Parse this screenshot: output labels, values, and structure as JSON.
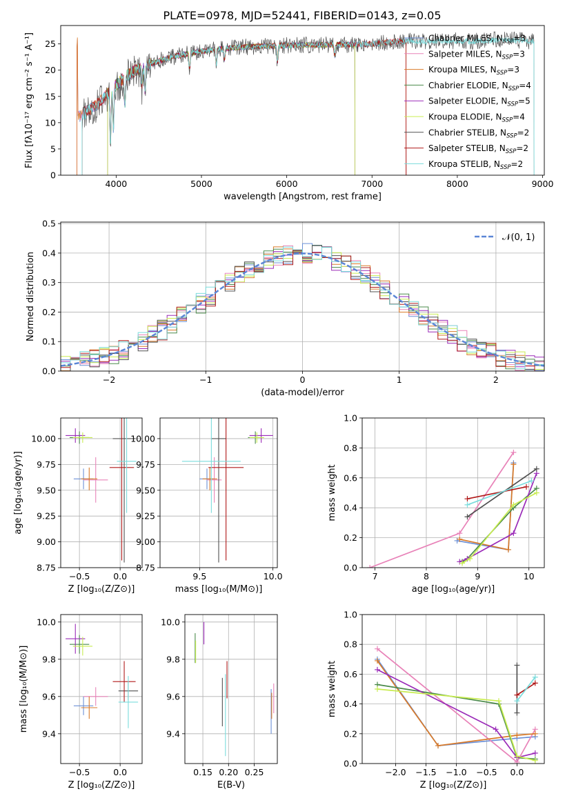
{
  "figure_title": "PLATE=0978, MJD=52441, FIBERID=0143, z=0.05",
  "colors": {
    "Chabrier MILES": "#6a8fd6",
    "Salpeter MILES": "#e882b8",
    "Kroupa MILES": "#d97a28",
    "Chabrier ELODIE": "#4a8a4a",
    "Salpeter ELODIE": "#9a2ab8",
    "Kroupa ELODIE": "#c8ec50",
    "Chabrier STELIB": "#505050",
    "Salpeter STELIB": "#b01818",
    "Kroupa STELIB": "#7adcdc",
    "gaussian": "#5b86d6"
  },
  "chart_data": [
    {
      "id": "spectrum",
      "type": "line",
      "title": "PLATE=0978, MJD=52441, FIBERID=0143, z=0.05",
      "xlabel": "wavelength [Angstrom, rest frame]",
      "ylabel": "Flux [fλ10⁻¹⁷ erg cm⁻² s⁻¹ A⁻¹]",
      "xlim": [
        3350,
        9020
      ],
      "ylim": [
        0,
        28.5
      ],
      "xticks": [
        4000,
        5000,
        6000,
        7000,
        8000,
        9000
      ],
      "yticks": [
        0,
        5,
        10,
        15,
        20,
        25
      ],
      "legend_position": "right",
      "legend": [
        {
          "label": "Chabrier MILES, N",
          "sub": "SSP",
          "tail": "=3",
          "model": "Chabrier MILES"
        },
        {
          "label": "Salpeter MILES, N",
          "sub": "SSP",
          "tail": "=3",
          "model": "Salpeter MILES"
        },
        {
          "label": "Kroupa MILES, N",
          "sub": "SSP",
          "tail": "=3",
          "model": "Kroupa MILES"
        },
        {
          "label": "Chabrier ELODIE, N",
          "sub": "SSP",
          "tail": "=4",
          "model": "Chabrier ELODIE"
        },
        {
          "label": "Salpeter ELODIE, N",
          "sub": "SSP",
          "tail": "=5",
          "model": "Salpeter ELODIE"
        },
        {
          "label": "Kroupa ELODIE, N",
          "sub": "SSP",
          "tail": "=4",
          "model": "Kroupa ELODIE"
        },
        {
          "label": "Chabrier STELIB, N",
          "sub": "SSP",
          "tail": "=2",
          "model": "Chabrier STELIB"
        },
        {
          "label": "Salpeter STELIB, N",
          "sub": "SSP",
          "tail": "=2",
          "model": "Salpeter STELIB"
        },
        {
          "label": "Kroupa STELIB, N",
          "sub": "SSP",
          "tail": "=2",
          "model": "Kroupa STELIB"
        }
      ],
      "continuum": {
        "x": [
          3550,
          3700,
          3800,
          3900,
          4000,
          4100,
          4200,
          4400,
          4600,
          4800,
          5000,
          5200,
          5400,
          5600,
          5800,
          6000,
          6200,
          6400,
          6600,
          6800,
          7000,
          7200,
          7400,
          7600,
          7800,
          8000,
          8200,
          8400,
          8600,
          8800,
          9000
        ],
        "y": [
          11,
          12.5,
          13.8,
          15.5,
          17.2,
          18.6,
          19.8,
          21.2,
          22.3,
          23.0,
          23.6,
          24.0,
          24.3,
          24.5,
          24.6,
          24.7,
          24.8,
          24.8,
          24.8,
          24.9,
          25.0,
          25.3,
          25.6,
          25.4,
          25.5,
          25.6,
          25.5,
          25.7,
          25.8,
          25.6,
          25.5
        ]
      },
      "absorption_lines": [
        {
          "x": 3933,
          "depth": 10
        },
        {
          "x": 3968,
          "depth": 8
        },
        {
          "x": 4102,
          "depth": 5
        },
        {
          "x": 4304,
          "depth": 4
        },
        {
          "x": 4340,
          "depth": 5
        },
        {
          "x": 4861,
          "depth": 3
        },
        {
          "x": 5175,
          "depth": 3
        },
        {
          "x": 5270,
          "depth": 2
        },
        {
          "x": 5890,
          "depth": 3
        },
        {
          "x": 6563,
          "depth": 2
        }
      ]
    },
    {
      "id": "residuals",
      "type": "bar",
      "xlabel": "(data-model)/error",
      "ylabel": "Normed distribution",
      "xlim": [
        -2.5,
        2.5
      ],
      "ylim": [
        0,
        0.505
      ],
      "xticks": [
        -2,
        -1,
        0,
        1,
        2
      ],
      "xticklabels": [
        "−2",
        "−1",
        "0",
        "1",
        "2"
      ],
      "yticks": [
        0,
        0.1,
        0.2,
        0.3,
        0.4,
        0.5
      ],
      "yticklabels": [
        "0.0",
        "0.1",
        "0.2",
        "0.3",
        "0.4",
        "0.5"
      ],
      "bin_width": 0.1,
      "series_note": "nine step histograms scattered around N(0,1)",
      "legend": [
        {
          "label": "𝒩(0, 1)"
        }
      ],
      "legend_position": "top-right"
    },
    {
      "id": "age_vs_Z",
      "type": "scatter",
      "xlabel": "Z [log₁₀(Z/Z⊙)]",
      "ylabel": "age  [log₁₀(age/yr)]",
      "xlim": [
        -0.73,
        0.27
      ],
      "ylim": [
        8.75,
        10.2
      ],
      "xticks": [
        -0.5,
        0.0
      ],
      "xticklabels": [
        "−0.5",
        "0.0"
      ],
      "yticks": [
        8.75,
        9.0,
        9.25,
        9.5,
        9.75,
        10.0
      ],
      "yticklabels": [
        "8.75",
        "9.00",
        "9.25",
        "9.50",
        "9.75",
        "10.00"
      ],
      "points": [
        {
          "model": "Chabrier MILES",
          "x": -0.45,
          "y": 9.61,
          "xerr": 0.12,
          "yerr": 0.1
        },
        {
          "model": "Salpeter MILES",
          "x": -0.3,
          "y": 9.6,
          "xerr": 0.15,
          "yerr": 0.22
        },
        {
          "model": "Kroupa MILES",
          "x": -0.38,
          "y": 9.61,
          "xerr": 0.1,
          "yerr": 0.11
        },
        {
          "model": "Chabrier ELODIE",
          "x": -0.5,
          "y": 10.01,
          "xerr": 0.12,
          "yerr": 0.06
        },
        {
          "model": "Salpeter ELODIE",
          "x": -0.55,
          "y": 10.03,
          "xerr": 0.12,
          "yerr": 0.07
        },
        {
          "model": "Kroupa ELODIE",
          "x": -0.46,
          "y": 10.01,
          "xerr": 0.12,
          "yerr": 0.05
        },
        {
          "model": "Chabrier STELIB",
          "x": 0.05,
          "y": 10.0,
          "xerr": 0.14,
          "yerr": 1.2
        },
        {
          "model": "Salpeter STELIB",
          "x": 0.02,
          "y": 9.72,
          "xerr": 0.15,
          "yerr": 0.9
        },
        {
          "model": "Kroupa STELIB",
          "x": 0.08,
          "y": 9.78,
          "xerr": 0.12,
          "yerr": 0.5
        }
      ]
    },
    {
      "id": "age_vs_mass",
      "type": "scatter",
      "xlabel": "mass [log₁₀(M/M⊙)]",
      "ylabel": "",
      "xlim": [
        9.23,
        10.03
      ],
      "ylim": [
        8.75,
        10.2
      ],
      "xticks": [
        9.5,
        10.0
      ],
      "xticklabels": [
        "9.5",
        "10.0"
      ],
      "yticks": [
        8.75,
        9.0,
        9.25,
        9.5,
        9.75,
        10.0
      ],
      "yticklabels": [
        "8.75",
        "9.00",
        "9.25",
        "9.50",
        "9.75",
        "10.00"
      ],
      "points": [
        {
          "model": "Chabrier MILES",
          "x": 9.55,
          "y": 9.61,
          "xerr": 0.05,
          "yerr": 0.1
        },
        {
          "model": "Salpeter MILES",
          "x": 9.6,
          "y": 9.6,
          "xerr": 0.05,
          "yerr": 0.22
        },
        {
          "model": "Kroupa MILES",
          "x": 9.57,
          "y": 9.61,
          "xerr": 0.05,
          "yerr": 0.11
        },
        {
          "model": "Chabrier ELODIE",
          "x": 9.88,
          "y": 10.01,
          "xerr": 0.05,
          "yerr": 0.06
        },
        {
          "model": "Salpeter ELODIE",
          "x": 9.92,
          "y": 10.03,
          "xerr": 0.08,
          "yerr": 0.07
        },
        {
          "model": "Kroupa ELODIE",
          "x": 9.89,
          "y": 10.01,
          "xerr": 0.05,
          "yerr": 0.05
        },
        {
          "model": "Chabrier STELIB",
          "x": 9.63,
          "y": 10.0,
          "xerr": 0.05,
          "yerr": 1.2
        },
        {
          "model": "Salpeter STELIB",
          "x": 9.68,
          "y": 9.72,
          "xerr": 0.12,
          "yerr": 0.9
        },
        {
          "model": "Kroupa STELIB",
          "x": 9.58,
          "y": 9.78,
          "xerr": 0.2,
          "yerr": 0.5
        }
      ]
    },
    {
      "id": "weight_vs_age",
      "type": "line",
      "xlabel": "age  [log₁₀(age/yr)]",
      "ylabel": "mass weight",
      "xlim": [
        6.75,
        10.3
      ],
      "ylim": [
        0,
        1.0
      ],
      "xticks": [
        7,
        8,
        9,
        10
      ],
      "yticks": [
        0,
        0.2,
        0.4,
        0.6,
        0.8,
        1.0
      ],
      "yticklabels": [
        "0.0",
        "0.2",
        "0.4",
        "0.6",
        "0.8",
        "1.0"
      ],
      "series": [
        {
          "model": "Chabrier MILES",
          "x": [
            8.6,
            9.6,
            9.7
          ],
          "y": [
            0.18,
            0.12,
            0.7
          ]
        },
        {
          "model": "Salpeter MILES",
          "x": [
            6.9,
            8.65,
            9.7
          ],
          "y": [
            0.0,
            0.23,
            0.77
          ]
        },
        {
          "model": "Kroupa MILES",
          "x": [
            8.65,
            9.6,
            9.7
          ],
          "y": [
            0.19,
            0.12,
            0.69
          ]
        },
        {
          "model": "Chabrier ELODIE",
          "x": [
            8.7,
            8.8,
            9.7,
            10.15
          ],
          "y": [
            0.04,
            0.06,
            0.4,
            0.53
          ]
        },
        {
          "model": "Salpeter ELODIE",
          "x": [
            8.65,
            8.8,
            9.7,
            10.15
          ],
          "y": [
            0.04,
            0.06,
            0.23,
            0.63
          ]
        },
        {
          "model": "Kroupa ELODIE",
          "x": [
            8.7,
            8.85,
            9.7,
            10.15
          ],
          "y": [
            0.03,
            0.06,
            0.42,
            0.5
          ]
        },
        {
          "model": "Chabrier STELIB",
          "x": [
            8.8,
            10.15
          ],
          "y": [
            0.34,
            0.66
          ]
        },
        {
          "model": "Salpeter STELIB",
          "x": [
            8.8,
            9.95
          ],
          "y": [
            0.46,
            0.54
          ]
        },
        {
          "model": "Kroupa STELIB",
          "x": [
            8.8,
            10.05
          ],
          "y": [
            0.42,
            0.58
          ]
        }
      ]
    },
    {
      "id": "mass_vs_Z",
      "type": "scatter",
      "xlabel": "Z [log₁₀(Z/Z⊙)]",
      "ylabel": "mass [log₁₀(M/M⊙)]",
      "xlim": [
        -0.73,
        0.27
      ],
      "ylim": [
        9.24,
        10.04
      ],
      "xticks": [
        -0.5,
        0.0
      ],
      "xticklabels": [
        "−0.5",
        "0.0"
      ],
      "yticks": [
        9.4,
        9.6,
        9.8,
        10.0
      ],
      "yticklabels": [
        "9.4",
        "9.6",
        "9.8",
        "10.0"
      ],
      "points": [
        {
          "model": "Chabrier MILES",
          "x": -0.45,
          "y": 9.55,
          "xerr": 0.12,
          "yerr": 0.05
        },
        {
          "model": "Salpeter MILES",
          "x": -0.3,
          "y": 9.6,
          "xerr": 0.15,
          "yerr": 0.05
        },
        {
          "model": "Kroupa MILES",
          "x": -0.38,
          "y": 9.54,
          "xerr": 0.1,
          "yerr": 0.06
        },
        {
          "model": "Chabrier ELODIE",
          "x": -0.5,
          "y": 9.88,
          "xerr": 0.12,
          "yerr": 0.05
        },
        {
          "model": "Salpeter ELODIE",
          "x": -0.55,
          "y": 9.91,
          "xerr": 0.12,
          "yerr": 0.08
        },
        {
          "model": "Kroupa ELODIE",
          "x": -0.46,
          "y": 9.87,
          "xerr": 0.12,
          "yerr": 0.05
        },
        {
          "model": "Chabrier STELIB",
          "x": 0.1,
          "y": 9.63,
          "xerr": 0.12,
          "yerr": 0.05
        },
        {
          "model": "Salpeter STELIB",
          "x": 0.05,
          "y": 9.68,
          "xerr": 0.14,
          "yerr": 0.11
        },
        {
          "model": "Kroupa STELIB",
          "x": 0.1,
          "y": 9.57,
          "xerr": 0.12,
          "yerr": 0.14
        }
      ]
    },
    {
      "id": "mass_vs_EBV",
      "type": "scatter",
      "xlabel": "E(B-V)",
      "ylabel": "",
      "xlim": [
        0.115,
        0.295
      ],
      "ylim": [
        9.24,
        10.04
      ],
      "xticks": [
        0.15,
        0.2,
        0.25
      ],
      "xticklabels": [
        "0.15",
        "0.20",
        "0.25"
      ],
      "yticks": [
        9.4,
        9.6,
        9.8,
        10.0
      ],
      "yticklabels": [
        "9.4",
        "9.6",
        "9.8",
        "10.0"
      ],
      "points": [
        {
          "model": "Chabrier MILES",
          "x": 0.283,
          "y": 9.52,
          "xerr": 0,
          "yerr": 0.12
        },
        {
          "model": "Salpeter MILES",
          "x": 0.288,
          "y": 9.59,
          "xerr": 0,
          "yerr": 0.08
        },
        {
          "model": "Kroupa MILES",
          "x": 0.284,
          "y": 9.55,
          "xerr": 0,
          "yerr": 0.07
        },
        {
          "model": "Chabrier ELODIE",
          "x": 0.135,
          "y": 9.86,
          "xerr": 0,
          "yerr": 0.08
        },
        {
          "model": "Salpeter ELODIE",
          "x": 0.152,
          "y": 9.94,
          "xerr": 0,
          "yerr": 0.06
        },
        {
          "model": "Kroupa ELODIE",
          "x": 0.136,
          "y": 9.84,
          "xerr": 0,
          "yerr": 0.06
        },
        {
          "model": "Chabrier STELIB",
          "x": 0.188,
          "y": 9.57,
          "xerr": 0,
          "yerr": 0.13
        },
        {
          "model": "Salpeter STELIB",
          "x": 0.197,
          "y": 9.69,
          "xerr": 0,
          "yerr": 0.1
        },
        {
          "model": "Kroupa STELIB",
          "x": 0.194,
          "y": 9.5,
          "xerr": 0,
          "yerr": 0.22
        }
      ]
    },
    {
      "id": "weight_vs_Z",
      "type": "line",
      "xlabel": "Z [log₁₀(Z/Z⊙)]",
      "ylabel": "mass weight",
      "xlim": [
        -2.55,
        0.45
      ],
      "ylim": [
        0,
        1.0
      ],
      "xticks": [
        -2.0,
        -1.5,
        -1.0,
        -0.5,
        0.0
      ],
      "xticklabels": [
        "−2.0",
        "−1.5",
        "−1.0",
        "−0.5",
        "0.0"
      ],
      "yticks": [
        0,
        0.2,
        0.4,
        0.6,
        0.8,
        1.0
      ],
      "yticklabels": [
        "0.0",
        "0.2",
        "0.4",
        "0.6",
        "0.8",
        "1.0"
      ],
      "series": [
        {
          "model": "Chabrier MILES",
          "x": [
            -2.3,
            -1.3,
            0.0,
            0.3
          ],
          "y": [
            0.7,
            0.12,
            0.17,
            0.18
          ]
        },
        {
          "model": "Salpeter MILES",
          "x": [
            -2.3,
            0.0,
            0.3
          ],
          "y": [
            0.77,
            0.01,
            0.23
          ]
        },
        {
          "model": "Kroupa MILES",
          "x": [
            -2.3,
            -1.3,
            0.0,
            0.3
          ],
          "y": [
            0.69,
            0.12,
            0.19,
            0.2
          ]
        },
        {
          "model": "Chabrier ELODIE",
          "x": [
            -2.3,
            -0.3,
            0.0,
            0.3
          ],
          "y": [
            0.53,
            0.4,
            0.04,
            0.03
          ]
        },
        {
          "model": "Salpeter ELODIE",
          "x": [
            -2.3,
            -0.35,
            0.0,
            0.3
          ],
          "y": [
            0.63,
            0.23,
            0.04,
            0.07
          ]
        },
        {
          "model": "Kroupa ELODIE",
          "x": [
            -2.3,
            -0.3,
            0.0,
            0.3
          ],
          "y": [
            0.5,
            0.42,
            0.05,
            0.02
          ]
        },
        {
          "model": "Chabrier STELIB",
          "x": [
            0.0,
            0.0
          ],
          "y": [
            0.34,
            0.66
          ]
        },
        {
          "model": "Salpeter STELIB",
          "x": [
            0.0,
            0.3
          ],
          "y": [
            0.46,
            0.54
          ]
        },
        {
          "model": "Kroupa STELIB",
          "x": [
            0.0,
            0.3
          ],
          "y": [
            0.42,
            0.58
          ]
        }
      ]
    }
  ]
}
